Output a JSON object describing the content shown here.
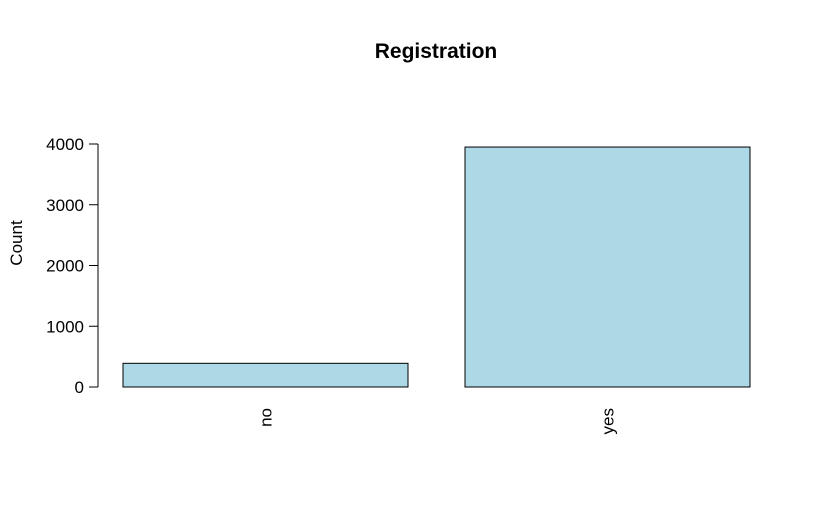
{
  "chart_data": {
    "type": "bar",
    "title": "Registration",
    "xlabel": "",
    "ylabel": "Count",
    "categories": [
      "no",
      "yes"
    ],
    "values": [
      390,
      3950
    ],
    "ylim": [
      0,
      4000
    ],
    "yticks": [
      "0",
      "1000",
      "2000",
      "3000",
      "4000"
    ],
    "bar_color": "#add8e6",
    "grid": false,
    "legend": "none"
  }
}
